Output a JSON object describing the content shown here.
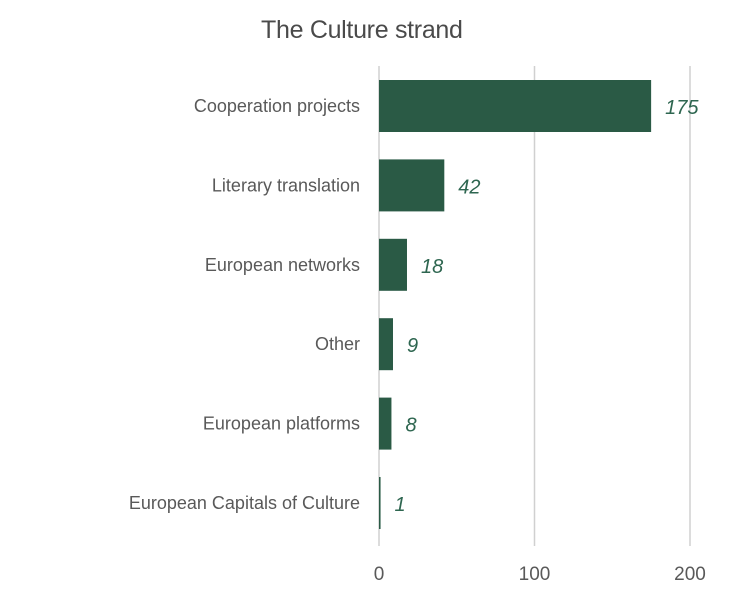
{
  "chart_data": {
    "type": "bar",
    "orientation": "horizontal",
    "title": "The Culture strand",
    "categories": [
      "Cooperation projects",
      "Literary translation",
      "European networks",
      "Other",
      "European platforms",
      "European Capitals of Culture"
    ],
    "values": [
      175,
      42,
      18,
      9,
      8,
      1
    ],
    "xlim": [
      0,
      200
    ],
    "ticks": [
      0,
      100,
      200
    ],
    "grid": true,
    "bar_color": "#2a5a45",
    "label_color": "#2e6650",
    "text_color": "#595959",
    "grid_color": "#d0d0d0"
  }
}
